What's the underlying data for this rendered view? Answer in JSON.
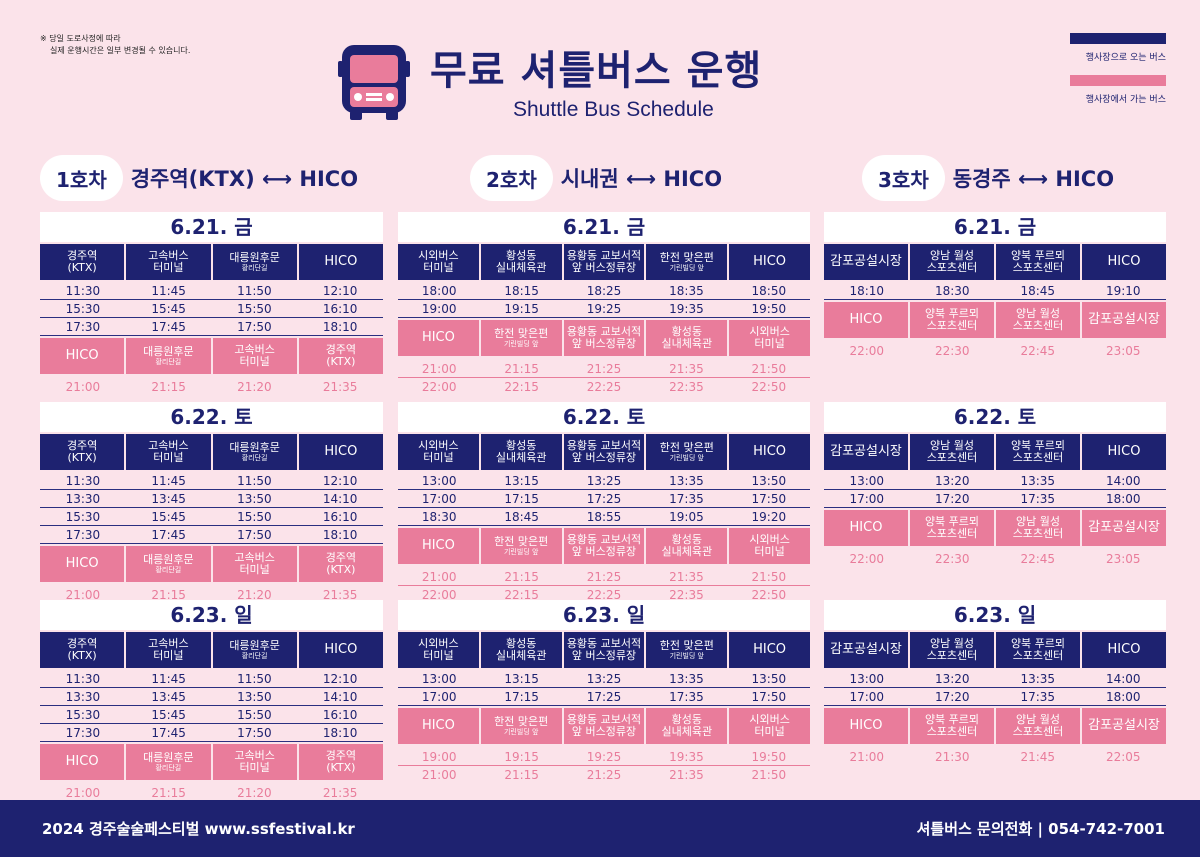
{
  "notice": [
    "※ 당일 도로사정에 따라",
    "실제 운행시간은 일부 변경될 수 있습니다."
  ],
  "title_ko": "무료 셔틀버스 운행",
  "title_en": "Shuttle Bus Schedule",
  "legend": {
    "to_venue": "행사장으로 오는 버스",
    "from_venue": "행사장에서 가는 버스",
    "navy": "#1e2270",
    "pink": "#e97c9b"
  },
  "routes": [
    {
      "num": "1호차",
      "name": "경주역(KTX) ⟷ HICO"
    },
    {
      "num": "2호차",
      "name": "시내권 ⟷ HICO"
    },
    {
      "num": "3호차",
      "name": "동경주 ⟷ HICO"
    }
  ],
  "footer": {
    "left": "2024 경주술술페스티벌  www.ssfestival.kr",
    "right": "셔틀버스 문의전화   |   054-742-7001"
  },
  "schedules": [
    {
      "days": [
        {
          "date": "6.21. 금",
          "out_headers": [
            [
              "경주역",
              "(KTX)"
            ],
            [
              "고속버스",
              "터미널"
            ],
            [
              "대릉원후문",
              "황리단길"
            ],
            [
              "HICO"
            ]
          ],
          "out_times": [
            [
              "11:30",
              "11:45",
              "11:50",
              "12:10"
            ],
            [
              "15:30",
              "15:45",
              "15:50",
              "16:10"
            ],
            [
              "17:30",
              "17:45",
              "17:50",
              "18:10"
            ]
          ],
          "ret_headers": [
            [
              "HICO"
            ],
            [
              "대릉원후문",
              "황리단길"
            ],
            [
              "고속버스",
              "터미널"
            ],
            [
              "경주역",
              "(KTX)"
            ]
          ],
          "ret_times": [
            [
              "21:00",
              "21:15",
              "21:20",
              "21:35"
            ]
          ]
        },
        {
          "date": "6.22. 토",
          "out_headers": [
            [
              "경주역",
              "(KTX)"
            ],
            [
              "고속버스",
              "터미널"
            ],
            [
              "대릉원후문",
              "황리단길"
            ],
            [
              "HICO"
            ]
          ],
          "out_times": [
            [
              "11:30",
              "11:45",
              "11:50",
              "12:10"
            ],
            [
              "13:30",
              "13:45",
              "13:50",
              "14:10"
            ],
            [
              "15:30",
              "15:45",
              "15:50",
              "16:10"
            ],
            [
              "17:30",
              "17:45",
              "17:50",
              "18:10"
            ]
          ],
          "ret_headers": [
            [
              "HICO"
            ],
            [
              "대릉원후문",
              "황리단길"
            ],
            [
              "고속버스",
              "터미널"
            ],
            [
              "경주역",
              "(KTX)"
            ]
          ],
          "ret_times": [
            [
              "21:00",
              "21:15",
              "21:20",
              "21:35"
            ]
          ]
        },
        {
          "date": "6.23. 일",
          "out_headers": [
            [
              "경주역",
              "(KTX)"
            ],
            [
              "고속버스",
              "터미널"
            ],
            [
              "대릉원후문",
              "황리단길"
            ],
            [
              "HICO"
            ]
          ],
          "out_times": [
            [
              "11:30",
              "11:45",
              "11:50",
              "12:10"
            ],
            [
              "13:30",
              "13:45",
              "13:50",
              "14:10"
            ],
            [
              "15:30",
              "15:45",
              "15:50",
              "16:10"
            ],
            [
              "17:30",
              "17:45",
              "17:50",
              "18:10"
            ]
          ],
          "ret_headers": [
            [
              "HICO"
            ],
            [
              "대릉원후문",
              "황리단길"
            ],
            [
              "고속버스",
              "터미널"
            ],
            [
              "경주역",
              "(KTX)"
            ]
          ],
          "ret_times": [
            [
              "21:00",
              "21:15",
              "21:20",
              "21:35"
            ]
          ]
        }
      ]
    },
    {
      "days": [
        {
          "date": "6.21. 금",
          "out_headers": [
            [
              "시외버스",
              "터미널"
            ],
            [
              "황성동",
              "실내체육관"
            ],
            [
              "용황동 교보서적",
              "앞 버스정류장"
            ],
            [
              "한전 맞은편",
              "기린빌딩 앞"
            ],
            [
              "HICO"
            ]
          ],
          "out_times": [
            [
              "18:00",
              "18:15",
              "18:25",
              "18:35",
              "18:50"
            ],
            [
              "19:00",
              "19:15",
              "19:25",
              "19:35",
              "19:50"
            ]
          ],
          "ret_headers": [
            [
              "HICO"
            ],
            [
              "한전 맞은편",
              "기린빌딩 앞"
            ],
            [
              "용황동 교보서적",
              "앞 버스정류장"
            ],
            [
              "황성동",
              "실내체육관"
            ],
            [
              "시외버스",
              "터미널"
            ]
          ],
          "ret_times": [
            [
              "21:00",
              "21:15",
              "21:25",
              "21:35",
              "21:50"
            ],
            [
              "22:00",
              "22:15",
              "22:25",
              "22:35",
              "22:50"
            ]
          ]
        },
        {
          "date": "6.22. 토",
          "out_headers": [
            [
              "시외버스",
              "터미널"
            ],
            [
              "황성동",
              "실내체육관"
            ],
            [
              "용황동 교보서적",
              "앞 버스정류장"
            ],
            [
              "한전 맞은편",
              "기린빌딩 앞"
            ],
            [
              "HICO"
            ]
          ],
          "out_times": [
            [
              "13:00",
              "13:15",
              "13:25",
              "13:35",
              "13:50"
            ],
            [
              "17:00",
              "17:15",
              "17:25",
              "17:35",
              "17:50"
            ],
            [
              "18:30",
              "18:45",
              "18:55",
              "19:05",
              "19:20"
            ]
          ],
          "ret_headers": [
            [
              "HICO"
            ],
            [
              "한전 맞은편",
              "기린빌딩 앞"
            ],
            [
              "용황동 교보서적",
              "앞 버스정류장"
            ],
            [
              "황성동",
              "실내체육관"
            ],
            [
              "시외버스",
              "터미널"
            ]
          ],
          "ret_times": [
            [
              "21:00",
              "21:15",
              "21:25",
              "21:35",
              "21:50"
            ],
            [
              "22:00",
              "22:15",
              "22:25",
              "22:35",
              "22:50"
            ]
          ]
        },
        {
          "date": "6.23. 일",
          "out_headers": [
            [
              "시외버스",
              "터미널"
            ],
            [
              "황성동",
              "실내체육관"
            ],
            [
              "용황동 교보서적",
              "앞 버스정류장"
            ],
            [
              "한전 맞은편",
              "기린빌딩 앞"
            ],
            [
              "HICO"
            ]
          ],
          "out_times": [
            [
              "13:00",
              "13:15",
              "13:25",
              "13:35",
              "13:50"
            ],
            [
              "17:00",
              "17:15",
              "17:25",
              "17:35",
              "17:50"
            ]
          ],
          "ret_headers": [
            [
              "HICO"
            ],
            [
              "한전 맞은편",
              "기린빌딩 앞"
            ],
            [
              "용황동 교보서적",
              "앞 버스정류장"
            ],
            [
              "황성동",
              "실내체육관"
            ],
            [
              "시외버스",
              "터미널"
            ]
          ],
          "ret_times": [
            [
              "19:00",
              "19:15",
              "19:25",
              "19:35",
              "19:50"
            ],
            [
              "21:00",
              "21:15",
              "21:25",
              "21:35",
              "21:50"
            ]
          ]
        }
      ]
    },
    {
      "days": [
        {
          "date": "6.21. 금",
          "out_headers": [
            [
              "감포공설시장"
            ],
            [
              "양남 월성",
              "스포츠센터"
            ],
            [
              "양북 푸르뫼",
              "스포츠센터"
            ],
            [
              "HICO"
            ]
          ],
          "out_times": [
            [
              "18:10",
              "18:30",
              "18:45",
              "19:10"
            ]
          ],
          "ret_headers": [
            [
              "HICO"
            ],
            [
              "양북 푸르뫼",
              "스포츠센터"
            ],
            [
              "양남 월성",
              "스포츠센터"
            ],
            [
              "감포공설시장"
            ]
          ],
          "ret_times": [
            [
              "22:00",
              "22:30",
              "22:45",
              "23:05"
            ]
          ]
        },
        {
          "date": "6.22. 토",
          "out_headers": [
            [
              "감포공설시장"
            ],
            [
              "양남 월성",
              "스포츠센터"
            ],
            [
              "양북 푸르뫼",
              "스포츠센터"
            ],
            [
              "HICO"
            ]
          ],
          "out_times": [
            [
              "13:00",
              "13:20",
              "13:35",
              "14:00"
            ],
            [
              "17:00",
              "17:20",
              "17:35",
              "18:00"
            ]
          ],
          "ret_headers": [
            [
              "HICO"
            ],
            [
              "양북 푸르뫼",
              "스포츠센터"
            ],
            [
              "양남 월성",
              "스포츠센터"
            ],
            [
              "감포공설시장"
            ]
          ],
          "ret_times": [
            [
              "22:00",
              "22:30",
              "22:45",
              "23:05"
            ]
          ]
        },
        {
          "date": "6.23. 일",
          "out_headers": [
            [
              "감포공설시장"
            ],
            [
              "양남 월성",
              "스포츠센터"
            ],
            [
              "양북 푸르뫼",
              "스포츠센터"
            ],
            [
              "HICO"
            ]
          ],
          "out_times": [
            [
              "13:00",
              "13:20",
              "13:35",
              "14:00"
            ],
            [
              "17:00",
              "17:20",
              "17:35",
              "18:00"
            ]
          ],
          "ret_headers": [
            [
              "HICO"
            ],
            [
              "양북 푸르뫼",
              "스포츠센터"
            ],
            [
              "양남 월성",
              "스포츠센터"
            ],
            [
              "감포공설시장"
            ]
          ],
          "ret_times": [
            [
              "21:00",
              "21:30",
              "21:45",
              "22:05"
            ]
          ]
        }
      ]
    }
  ]
}
